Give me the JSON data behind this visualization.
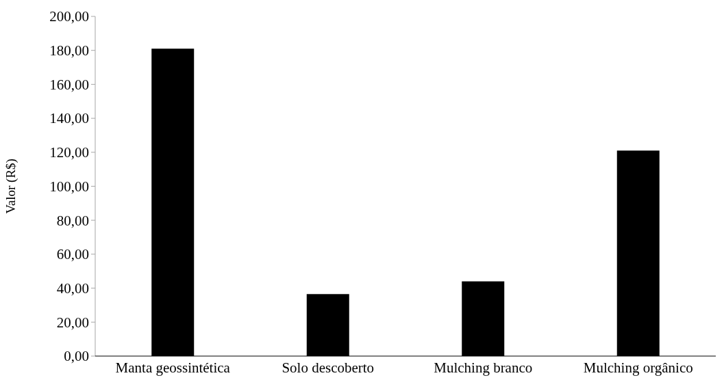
{
  "chart_data": {
    "type": "bar",
    "ylabel": "Valor (R$)",
    "categories": [
      "Manta geossintética",
      "Solo descoberto",
      "Mulching branco",
      "Mulching orgânico"
    ],
    "values": [
      181,
      36.5,
      44,
      121
    ],
    "color": "#000000",
    "ylim": [
      0,
      200
    ],
    "yticks": [
      {
        "value": 0,
        "label": "0,00"
      },
      {
        "value": 20,
        "label": "20,00"
      },
      {
        "value": 40,
        "label": "40,00"
      },
      {
        "value": 60,
        "label": "60,00"
      },
      {
        "value": 80,
        "label": "80,00"
      },
      {
        "value": 100,
        "label": "100,00"
      },
      {
        "value": 120,
        "label": "120,00"
      },
      {
        "value": 140,
        "label": "140,00"
      },
      {
        "value": 160,
        "label": "160,00"
      },
      {
        "value": 180,
        "label": "180,00"
      },
      {
        "value": 200,
        "label": "200,00"
      }
    ],
    "grid": false
  }
}
